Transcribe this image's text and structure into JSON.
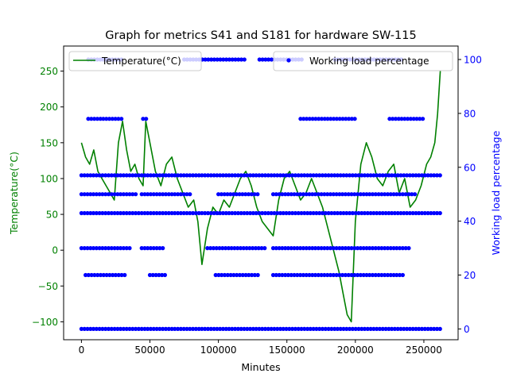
{
  "chart_data": {
    "type": "line",
    "title": "Graph for metrics S41 and S181 for hardware SW-115",
    "xlabel": "Minutes",
    "xlim": [
      -13000,
      275000
    ],
    "x_ticks": [
      0,
      50000,
      100000,
      150000,
      200000,
      250000
    ],
    "x_tick_labels": [
      "0",
      "50000",
      "100000",
      "150000",
      "200000",
      "250000"
    ],
    "y_left": {
      "label": "Temperature(°C)",
      "color": "#008000",
      "lim": [
        -125,
        285
      ],
      "ticks": [
        -100,
        -50,
        0,
        50,
        100,
        150,
        200,
        250
      ],
      "tick_labels": [
        "−100",
        "−50",
        "0",
        "50",
        "100",
        "150",
        "200",
        "250"
      ]
    },
    "y_right": {
      "label": "Working load percentage",
      "color": "#0000ff",
      "lim": [
        -4,
        105
      ],
      "ticks": [
        0,
        20,
        40,
        60,
        80,
        100
      ],
      "tick_labels": [
        "0",
        "20",
        "40",
        "60",
        "80",
        "100"
      ]
    },
    "series": [
      {
        "name": "Temperature(°C)",
        "type": "line",
        "axis": "left",
        "color": "#008000",
        "x": [
          0,
          3000,
          6000,
          9000,
          12000,
          15000,
          18000,
          21000,
          24000,
          27000,
          30000,
          33000,
          36000,
          39000,
          42000,
          45000,
          47000,
          50000,
          54000,
          58000,
          62000,
          66000,
          70000,
          74000,
          78000,
          82000,
          85000,
          88000,
          92000,
          96000,
          100000,
          104000,
          108000,
          112000,
          116000,
          120000,
          124000,
          128000,
          132000,
          136000,
          140000,
          144000,
          148000,
          152000,
          156000,
          160000,
          164000,
          168000,
          172000,
          176000,
          180000,
          184000,
          188000,
          191000,
          194000,
          197000,
          200000,
          204000,
          208000,
          212000,
          216000,
          220000,
          224000,
          228000,
          232000,
          236000,
          240000,
          244000,
          248000,
          252000,
          255000,
          258000,
          260000,
          262000
        ],
        "y": [
          150,
          130,
          120,
          140,
          110,
          100,
          90,
          80,
          70,
          150,
          180,
          140,
          110,
          120,
          100,
          90,
          180,
          150,
          110,
          90,
          120,
          130,
          100,
          80,
          60,
          70,
          40,
          -20,
          30,
          60,
          50,
          70,
          60,
          80,
          100,
          110,
          90,
          60,
          40,
          30,
          20,
          70,
          100,
          110,
          90,
          70,
          80,
          100,
          80,
          60,
          30,
          0,
          -30,
          -60,
          -90,
          -100,
          40,
          120,
          150,
          130,
          100,
          90,
          110,
          120,
          80,
          100,
          60,
          70,
          90,
          120,
          130,
          150,
          190,
          250
        ]
      },
      {
        "name": "Working load percentage",
        "type": "scatter",
        "axis": "right",
        "color": "#0000ff",
        "bands": [
          {
            "y": 0,
            "segments": [
              [
                0,
                262000
              ]
            ]
          },
          {
            "y": 20,
            "segments": [
              [
                3000,
                32000
              ],
              [
                50000,
                62000
              ],
              [
                98000,
                130000
              ],
              [
                140000,
                235000
              ]
            ]
          },
          {
            "y": 30,
            "segments": [
              [
                0,
                36000
              ],
              [
                44000,
                60000
              ],
              [
                92000,
                135000
              ],
              [
                140000,
                240000
              ]
            ]
          },
          {
            "y": 43,
            "segments": [
              [
                0,
                262000
              ]
            ]
          },
          {
            "y": 50,
            "segments": [
              [
                0,
                40000
              ],
              [
                44000,
                80000
              ],
              [
                100000,
                130000
              ],
              [
                140000,
                245000
              ]
            ]
          },
          {
            "y": 57,
            "segments": [
              [
                0,
                262000
              ]
            ]
          },
          {
            "y": 78,
            "segments": [
              [
                5000,
                30000
              ],
              [
                45000,
                48000
              ],
              [
                160000,
                200000
              ],
              [
                225000,
                250000
              ]
            ]
          },
          {
            "y": 100,
            "segments": [
              [
                5000,
                30000
              ],
              [
                75000,
                120000
              ],
              [
                130000,
                162000
              ],
              [
                185000,
                235000
              ]
            ]
          }
        ]
      }
    ],
    "legends": [
      {
        "placement": "upper left",
        "entries": [
          "Temperature(°C)"
        ]
      },
      {
        "placement": "upper right",
        "entries": [
          "Working load percentage"
        ]
      }
    ]
  }
}
